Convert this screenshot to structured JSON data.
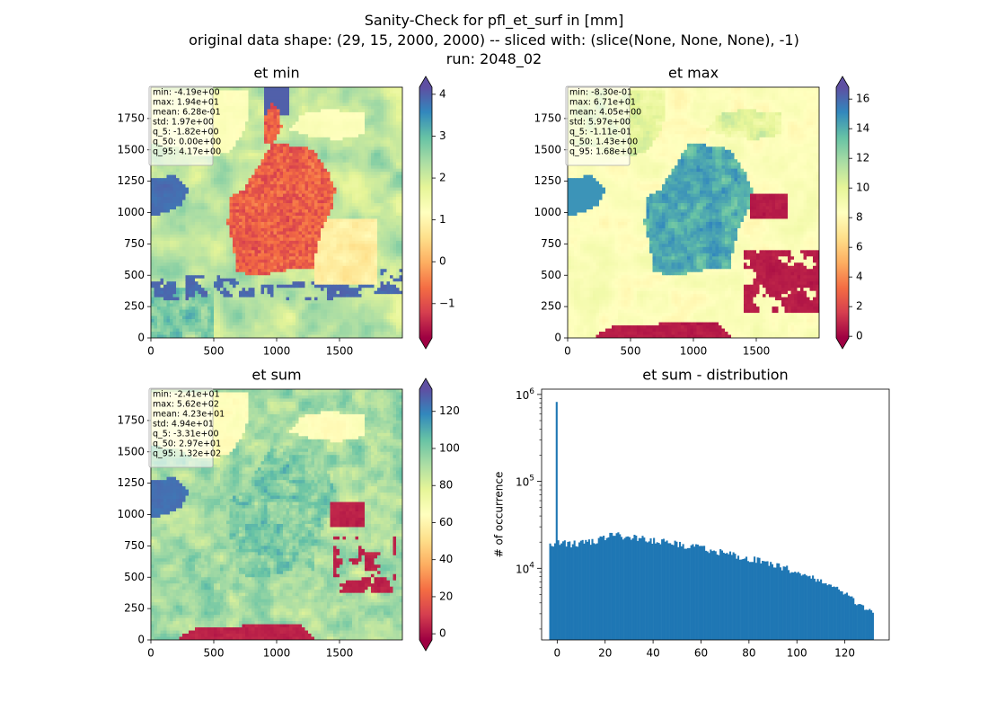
{
  "figure": {
    "suptitle_lines": [
      "Sanity-Check for pfl_et_surf in [mm]",
      "original data shape: (29, 15, 2000, 2000) -- sliced with: (slice(None, None, None), -1)",
      "run: 2048_02"
    ]
  },
  "chart_data": [
    {
      "type": "heatmap",
      "title": "et min",
      "xlabel": "",
      "ylabel": "",
      "xlim": [
        0,
        2000
      ],
      "ylim": [
        0,
        2000
      ],
      "xticks": [
        "0",
        "500",
        "1000",
        "1500"
      ],
      "yticks": [
        "0",
        "250",
        "500",
        "750",
        "1000",
        "1250",
        "1500",
        "1750"
      ],
      "colormap": "Spectral",
      "colorbar": {
        "range": [
          -1.82,
          4.17
        ],
        "extend": "both",
        "ticks": [
          "−1",
          "0",
          "1",
          "2",
          "3",
          "4"
        ]
      },
      "stats": [
        "min: -4.19e+00",
        "max: 1.94e+01",
        "mean: 6.28e-01",
        "std: 1.97e+00",
        "q_5: -1.82e+00",
        "q_50: 0.00e+00",
        "q_95: 4.17e+00"
      ]
    },
    {
      "type": "heatmap",
      "title": "et max",
      "xlabel": "",
      "ylabel": "",
      "xlim": [
        0,
        2000
      ],
      "ylim": [
        0,
        2000
      ],
      "xticks": [
        "0",
        "500",
        "1000",
        "1500"
      ],
      "yticks": [
        "0",
        "250",
        "500",
        "750",
        "1000",
        "1250",
        "1500",
        "1750"
      ],
      "colormap": "Spectral",
      "colorbar": {
        "range": [
          -0.111,
          16.8
        ],
        "extend": "both",
        "ticks": [
          "0",
          "2",
          "4",
          "6",
          "8",
          "10",
          "12",
          "14",
          "16"
        ]
      },
      "stats": [
        "min: -8.30e-01",
        "max: 6.71e+01",
        "mean: 4.05e+00",
        "std: 5.97e+00",
        "q_5: -1.11e-01",
        "q_50: 1.43e+00",
        "q_95: 1.68e+01"
      ]
    },
    {
      "type": "heatmap",
      "title": "et sum",
      "xlabel": "",
      "ylabel": "",
      "xlim": [
        0,
        2000
      ],
      "ylim": [
        0,
        2000
      ],
      "xticks": [
        "0",
        "500",
        "1000",
        "1500"
      ],
      "yticks": [
        "0",
        "250",
        "500",
        "750",
        "1000",
        "1250",
        "1500",
        "1750"
      ],
      "colormap": "Spectral",
      "colorbar": {
        "range": [
          -3.31,
          132
        ],
        "extend": "both",
        "ticks": [
          "0",
          "20",
          "40",
          "60",
          "80",
          "100",
          "120"
        ]
      },
      "stats": [
        "min: -2.41e+01",
        "max: 5.62e+02",
        "mean: 4.23e+01",
        "std: 4.94e+01",
        "q_5: -3.31e+00",
        "q_50: 2.97e+01",
        "q_95: 1.32e+02"
      ]
    },
    {
      "type": "bar",
      "title": "et sum - distribution",
      "xlabel": "",
      "ylabel": "# of occurrence",
      "xlim": [
        -6.5,
        138.5
      ],
      "ylim": [
        1500,
        1150000
      ],
      "yscale": "log",
      "xticks": [
        "0",
        "20",
        "40",
        "60",
        "80",
        "100",
        "120"
      ],
      "yticks": [
        "10^4",
        "10^5",
        "10^6"
      ],
      "bin_range": [
        -3.31,
        132
      ],
      "bins": 200,
      "color": "#1f77b4",
      "peak": {
        "x": 0,
        "count": 820000
      },
      "profile_x": [
        -3.3,
        -1,
        0.8,
        5,
        10,
        15,
        20,
        22,
        25,
        30,
        35,
        40,
        45,
        50,
        55,
        60,
        65,
        70,
        75,
        80,
        85,
        90,
        95,
        100,
        105,
        110,
        115,
        120,
        125,
        128,
        132
      ],
      "profile_y": [
        18000,
        19000,
        20000,
        19000,
        19500,
        20000,
        23000,
        25000,
        24000,
        23000,
        22000,
        21000,
        20000,
        19000,
        18000,
        17000,
        16000,
        15000,
        14000,
        13000,
        12000,
        11000,
        10000,
        9000,
        8000,
        7000,
        6000,
        5000,
        4000,
        3500,
        3000
      ]
    }
  ]
}
